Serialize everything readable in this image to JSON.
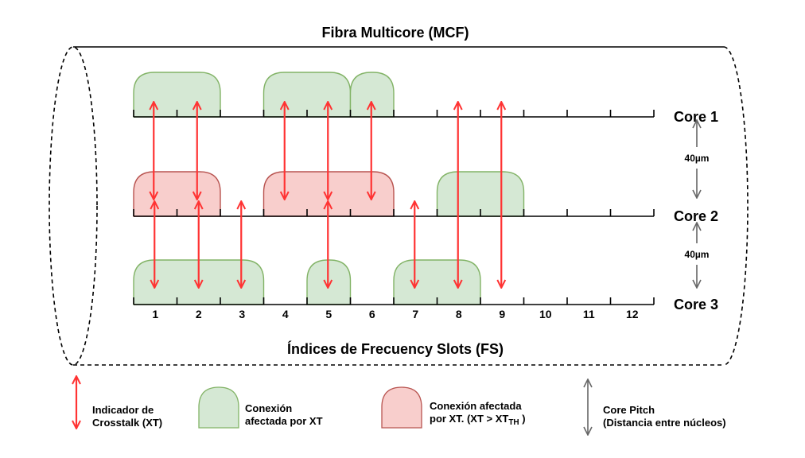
{
  "title": "Fibra Multicore (MCF)",
  "axis_label": "Índices de Frecuency Slots (FS)",
  "slot_indices": [
    "1",
    "2",
    "3",
    "4",
    "5",
    "6",
    "7",
    "8",
    "9",
    "10",
    "11",
    "12"
  ],
  "cores": [
    {
      "label": "Core 1"
    },
    {
      "label": "Core 2"
    },
    {
      "label": "Core 3"
    }
  ],
  "core_pitch_labels": [
    "40µm",
    "40µm"
  ],
  "connections": [
    {
      "core": 1,
      "start_slot": 1,
      "end_slot": 2,
      "status": "affected"
    },
    {
      "core": 1,
      "start_slot": 4,
      "end_slot": 5,
      "status": "affected"
    },
    {
      "core": 1,
      "start_slot": 6,
      "end_slot": 6,
      "status": "affected"
    },
    {
      "core": 2,
      "start_slot": 1,
      "end_slot": 2,
      "status": "affected_above_threshold"
    },
    {
      "core": 2,
      "start_slot": 4,
      "end_slot": 6,
      "status": "affected_above_threshold"
    },
    {
      "core": 2,
      "start_slot": 8,
      "end_slot": 9,
      "status": "affected"
    },
    {
      "core": 3,
      "start_slot": 1,
      "end_slot": 3,
      "status": "affected"
    },
    {
      "core": 3,
      "start_slot": 5,
      "end_slot": 5,
      "status": "affected"
    },
    {
      "core": 3,
      "start_slot": 7,
      "end_slot": 8,
      "status": "affected"
    }
  ],
  "crosstalk_indicators": [
    {
      "slot": 1,
      "from_core": 1,
      "to_core": 2
    },
    {
      "slot": 2,
      "from_core": 1,
      "to_core": 2
    },
    {
      "slot": 4,
      "from_core": 1,
      "to_core": 2
    },
    {
      "slot": 5,
      "from_core": 1,
      "to_core": 2
    },
    {
      "slot": 6,
      "from_core": 1,
      "to_core": 2
    },
    {
      "slot": 8,
      "from_core": 1,
      "to_core": 3
    },
    {
      "slot": 9,
      "from_core": 1,
      "to_core": 3
    },
    {
      "slot": 1,
      "from_core": 2,
      "to_core": 3
    },
    {
      "slot": 2,
      "from_core": 2,
      "to_core": 3
    },
    {
      "slot": 3,
      "from_core": 2,
      "to_core": 3
    },
    {
      "slot": 5,
      "from_core": 2,
      "to_core": 3
    },
    {
      "slot": 7,
      "from_core": 2,
      "to_core": 3
    }
  ],
  "legend": {
    "crosstalk": [
      "Indicador de",
      "Crosstalk (XT)"
    ],
    "affected": [
      "Conexión",
      "afectada por XT"
    ],
    "affected_threshold": [
      "Conexión afectada",
      "por XT.  (XT > XT",
      "TH",
      " )"
    ],
    "core_pitch": [
      "Core Pitch",
      "(Distancia entre núcleos)"
    ]
  },
  "colors": {
    "green_fill": "#d5e8d4",
    "green_stroke": "#82b366",
    "red_fill": "#f8cecc",
    "red_stroke": "#b85450",
    "arrow_red": "#ff3333",
    "pitch_gray": "#666666",
    "line": "#000000"
  }
}
